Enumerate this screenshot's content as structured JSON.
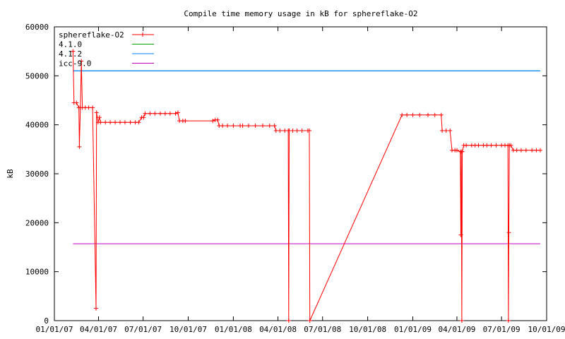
{
  "chart_data": {
    "type": "line",
    "title": "Compile time memory usage in kB for sphereflake-O2",
    "ylabel": "kB",
    "xlabel": "",
    "ylim": [
      0,
      60000
    ],
    "yticks": [
      0,
      10000,
      20000,
      30000,
      40000,
      50000,
      60000
    ],
    "ytick_labels": [
      "0",
      "10000",
      "20000",
      "30000",
      "40000",
      "50000",
      "60000"
    ],
    "xlim": [
      "2007-01-01",
      "2009-10-01"
    ],
    "xticks": [
      "2007-01-01",
      "2007-04-01",
      "2007-07-01",
      "2007-10-01",
      "2008-01-01",
      "2008-04-01",
      "2008-07-01",
      "2008-10-01",
      "2009-01-01",
      "2009-04-01",
      "2009-07-01",
      "2009-10-01"
    ],
    "xtick_labels": [
      "01/01/07",
      "04/01/07",
      "07/01/07",
      "10/01/07",
      "01/01/08",
      "04/01/08",
      "07/01/08",
      "10/01/08",
      "01/01/09",
      "04/01/09",
      "07/01/09",
      "10/01/09"
    ],
    "legend_position": "top-left",
    "grid": false,
    "series": [
      {
        "name": "sphereflake-O2",
        "color": "#ff0000",
        "marker": "plus",
        "points": [
          [
            "2007-02-08",
            55000
          ],
          [
            "2007-02-10",
            44500
          ],
          [
            "2007-02-15",
            44500
          ],
          [
            "2007-02-20",
            43500
          ],
          [
            "2007-02-21",
            35500
          ],
          [
            "2007-02-23",
            43500
          ],
          [
            "2007-02-25",
            53000
          ],
          [
            "2007-02-27",
            43500
          ],
          [
            "2007-03-05",
            43500
          ],
          [
            "2007-03-12",
            43500
          ],
          [
            "2007-03-20",
            43500
          ],
          [
            "2007-03-27",
            2500
          ],
          [
            "2007-03-28",
            42500
          ],
          [
            "2007-03-31",
            40500
          ],
          [
            "2007-04-03",
            41500
          ],
          [
            "2007-04-05",
            40500
          ],
          [
            "2007-04-15",
            40500
          ],
          [
            "2007-04-25",
            40500
          ],
          [
            "2007-05-05",
            40500
          ],
          [
            "2007-05-15",
            40500
          ],
          [
            "2007-05-25",
            40500
          ],
          [
            "2007-06-05",
            40500
          ],
          [
            "2007-06-15",
            40500
          ],
          [
            "2007-06-22",
            40500
          ],
          [
            "2007-06-28",
            41500
          ],
          [
            "2007-07-02",
            41500
          ],
          [
            "2007-07-05",
            42300
          ],
          [
            "2007-07-15",
            42300
          ],
          [
            "2007-07-25",
            42300
          ],
          [
            "2007-08-05",
            42300
          ],
          [
            "2007-08-15",
            42300
          ],
          [
            "2007-08-25",
            42300
          ],
          [
            "2007-09-05",
            42300
          ],
          [
            "2007-09-10",
            42500
          ],
          [
            "2007-09-13",
            40800
          ],
          [
            "2007-09-20",
            40800
          ],
          [
            "2007-09-25",
            40800
          ],
          [
            "2007-11-20",
            40800
          ],
          [
            "2007-11-25",
            41000
          ],
          [
            "2007-11-30",
            41000
          ],
          [
            "2007-12-03",
            39800
          ],
          [
            "2007-12-10",
            39800
          ],
          [
            "2007-12-20",
            39800
          ],
          [
            "2008-01-01",
            39800
          ],
          [
            "2008-01-15",
            39800
          ],
          [
            "2008-01-20",
            39800
          ],
          [
            "2008-02-01",
            39800
          ],
          [
            "2008-02-15",
            39800
          ],
          [
            "2008-03-01",
            39800
          ],
          [
            "2008-03-15",
            39800
          ],
          [
            "2008-03-25",
            39800
          ],
          [
            "2008-03-28",
            38800
          ],
          [
            "2008-04-05",
            38800
          ],
          [
            "2008-04-15",
            38800
          ],
          [
            "2008-04-22",
            38800
          ],
          [
            "2008-04-23",
            0
          ],
          [
            "2008-04-24",
            38800
          ],
          [
            "2008-05-01",
            38800
          ],
          [
            "2008-05-10",
            38800
          ],
          [
            "2008-05-20",
            38800
          ],
          [
            "2008-06-01",
            38800
          ],
          [
            "2008-06-04",
            38800
          ],
          [
            "2008-06-05",
            0
          ],
          [
            "2008-12-10",
            42000
          ],
          [
            "2008-12-20",
            42000
          ],
          [
            "2009-01-01",
            42000
          ],
          [
            "2009-01-15",
            42000
          ],
          [
            "2009-02-01",
            42000
          ],
          [
            "2009-02-15",
            42000
          ],
          [
            "2009-02-28",
            42000
          ],
          [
            "2009-03-02",
            38800
          ],
          [
            "2009-03-10",
            38800
          ],
          [
            "2009-03-18",
            38800
          ],
          [
            "2009-03-22",
            34800
          ],
          [
            "2009-03-28",
            34800
          ],
          [
            "2009-04-01",
            34800
          ],
          [
            "2009-04-08",
            34500
          ],
          [
            "2009-04-09",
            17500
          ],
          [
            "2009-04-10",
            34500
          ],
          [
            "2009-04-11",
            0
          ],
          [
            "2009-04-12",
            34500
          ],
          [
            "2009-04-15",
            35800
          ],
          [
            "2009-04-20",
            35800
          ],
          [
            "2009-05-01",
            35800
          ],
          [
            "2009-05-08",
            35800
          ],
          [
            "2009-05-15",
            35800
          ],
          [
            "2009-05-25",
            35800
          ],
          [
            "2009-06-01",
            35800
          ],
          [
            "2009-06-10",
            35800
          ],
          [
            "2009-06-20",
            35800
          ],
          [
            "2009-07-01",
            35800
          ],
          [
            "2009-07-08",
            35800
          ],
          [
            "2009-07-14",
            35800
          ],
          [
            "2009-07-15",
            0
          ],
          [
            "2009-07-16",
            18000
          ],
          [
            "2009-07-17",
            35800
          ],
          [
            "2009-07-20",
            35800
          ],
          [
            "2009-07-25",
            34800
          ],
          [
            "2009-08-01",
            34800
          ],
          [
            "2009-08-10",
            34800
          ],
          [
            "2009-08-20",
            34800
          ],
          [
            "2009-09-01",
            34800
          ],
          [
            "2009-09-10",
            34800
          ],
          [
            "2009-09-18",
            34800
          ]
        ]
      },
      {
        "name": "4.1.0",
        "color": "#00a000",
        "marker": "none",
        "points": [
          [
            "2007-02-08",
            51000
          ],
          [
            "2009-09-18",
            51000
          ]
        ]
      },
      {
        "name": "4.1.2",
        "color": "#0080ff",
        "marker": "none",
        "points": [
          [
            "2007-02-08",
            51000
          ],
          [
            "2009-09-18",
            51000
          ]
        ]
      },
      {
        "name": "icc-9.0",
        "color": "#c000c0",
        "marker": "none",
        "points": [
          [
            "2007-02-08",
            15700
          ],
          [
            "2009-09-18",
            15700
          ]
        ]
      }
    ]
  }
}
